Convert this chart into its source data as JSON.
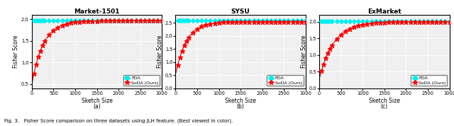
{
  "titles": [
    "Market-1501",
    "SYSU",
    "ExMarket"
  ],
  "subtitles": [
    "(a)",
    "(b)",
    "(c)"
  ],
  "xlabel": "Sketch Size",
  "ylabel": "Fisher Score",
  "caption": "Fig. 3.   Fisher Score comparison on three datasets using JLH feature. (Best viewed in color).",
  "fda_color": "#00EEEE",
  "soda_color": "#FF0000",
  "fda_marker": "D",
  "soda_marker": "*",
  "bg_color": "#F0F0F0",
  "x_ticks": [
    0,
    500,
    1000,
    1500,
    2000,
    2500,
    3000
  ],
  "plots": [
    {
      "fda_value": 1.98,
      "soda_start": 0.48,
      "soda_end": 1.97,
      "soda_k": 0.0038,
      "ylim": [
        0.4,
        2.1
      ],
      "yticks": [
        0.5,
        1.0,
        1.5,
        2.0
      ]
    },
    {
      "fda_value": 2.58,
      "soda_start": 0.52,
      "soda_end": 2.55,
      "soda_k": 0.004,
      "ylim": [
        0.0,
        2.8
      ],
      "yticks": [
        0.0,
        0.5,
        1.0,
        1.5,
        2.0,
        2.5
      ]
    },
    {
      "fda_value": 2.02,
      "soda_start": 0.28,
      "soda_end": 2.0,
      "soda_k": 0.003,
      "ylim": [
        0.0,
        2.2
      ],
      "yticks": [
        0.0,
        0.5,
        1.0,
        1.5,
        2.0
      ]
    }
  ]
}
